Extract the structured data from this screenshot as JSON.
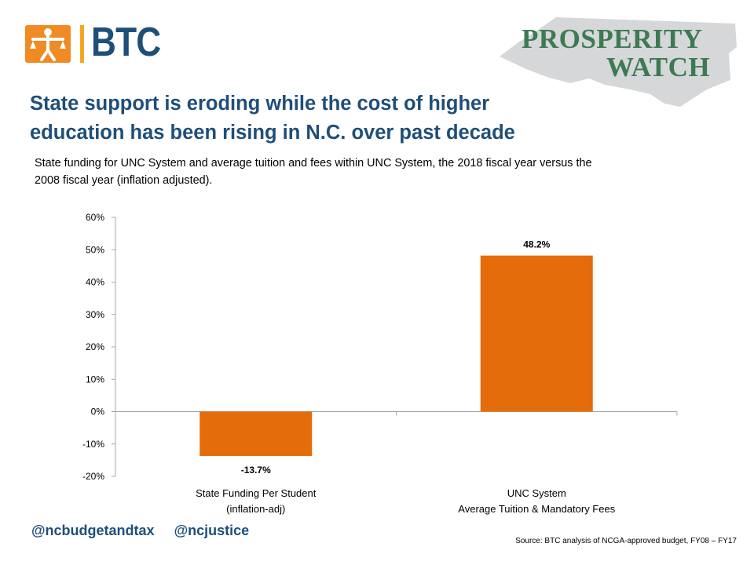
{
  "brand": {
    "btc_logo_text": "BTC",
    "prosperity_line1": "PROSPERITY",
    "prosperity_line2": "WATCH",
    "accent_orange": "#f08a24",
    "brand_blue": "#1f4e79",
    "prosperity_green": "#3d7a53"
  },
  "headline": {
    "line1": "State support is eroding while the cost of higher",
    "line2": "education has been rising in N.C. over past decade"
  },
  "subtitle": "State funding for UNC System and average tuition and fees within UNC System, the 2018 fiscal year versus the 2008 fiscal year (inflation adjusted).",
  "chart_data": {
    "type": "bar",
    "categories": [
      [
        "State Funding Per Student",
        "(inflation-adj)"
      ],
      [
        "UNC System",
        "Average Tuition & Mandatory Fees"
      ]
    ],
    "values": [
      -13.7,
      48.2
    ],
    "data_labels": [
      "-13.7%",
      "48.2%"
    ],
    "bar_color": "#e46c0a",
    "ylim": [
      -20,
      60
    ],
    "yticks": [
      60,
      50,
      40,
      30,
      20,
      10,
      0,
      -10,
      -20
    ],
    "ytick_labels": [
      "60%",
      "50%",
      "40%",
      "30%",
      "20%",
      "10%",
      "0%",
      "-10%",
      "-20%"
    ],
    "grid": false,
    "legend": "none"
  },
  "footer": {
    "social_1": "@ncbudgetandtax",
    "social_2": "@ncjustice",
    "source": "Source: BTC analysis of NCGA-approved budget, FY08 – FY17"
  }
}
